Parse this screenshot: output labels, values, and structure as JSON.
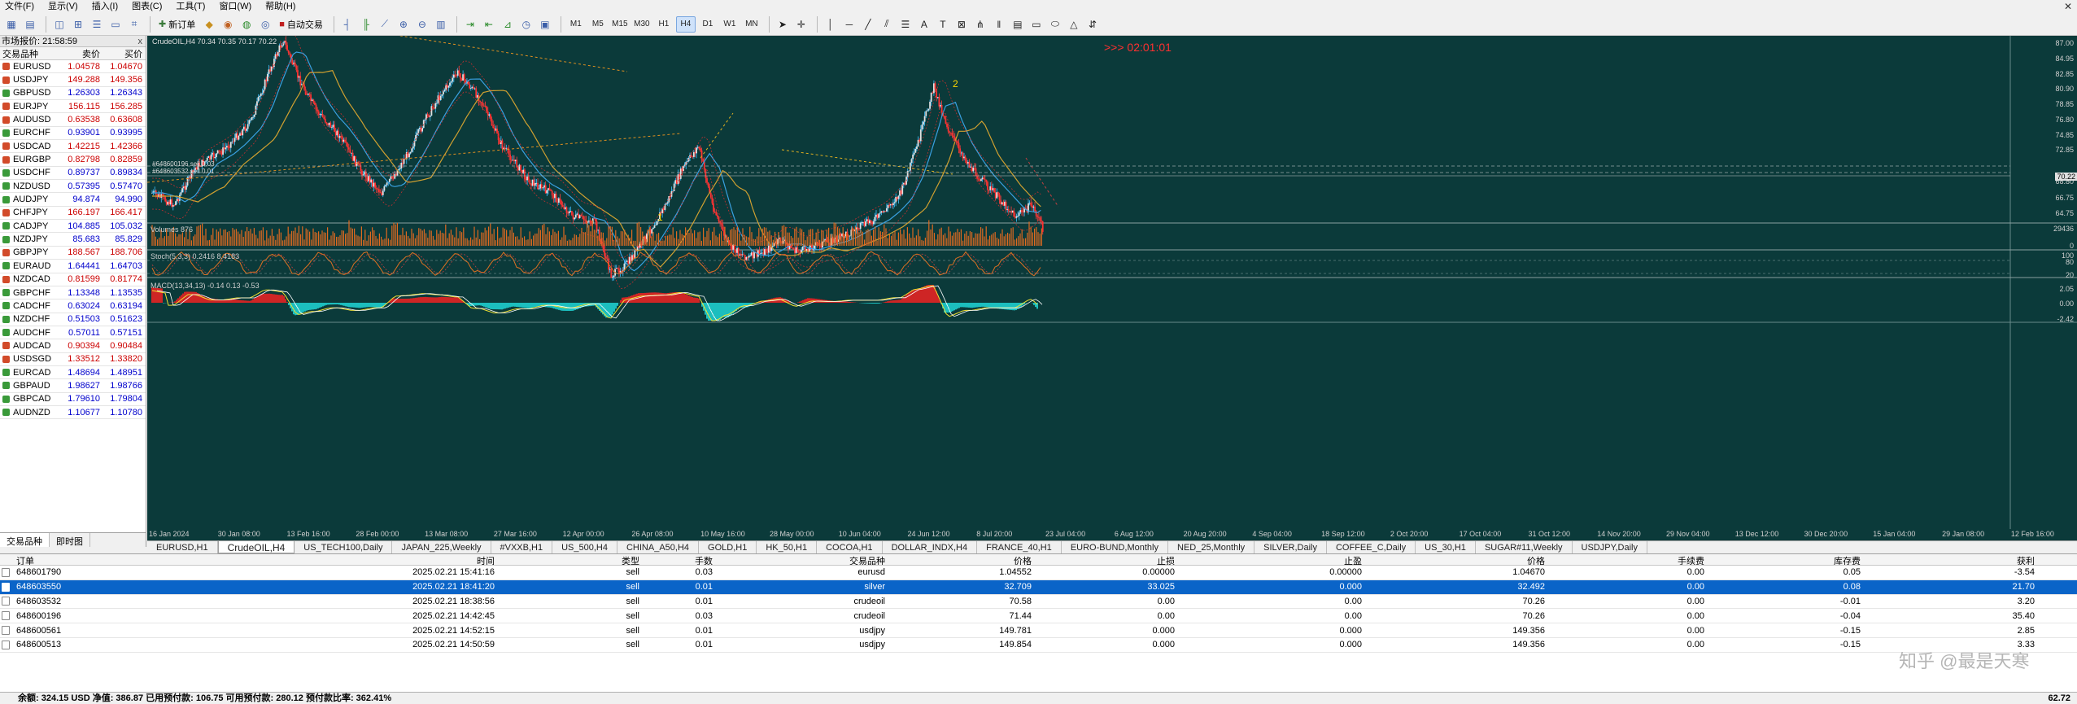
{
  "menu": [
    "文件(F)",
    "显示(V)",
    "插入(I)",
    "图表(C)",
    "工具(T)",
    "窗口(W)",
    "帮助(H)"
  ],
  "toolbar": {
    "new_order": "新订单",
    "auto_trading": "自动交易",
    "timeframes": [
      "M1",
      "M5",
      "M15",
      "M30",
      "H1",
      "H4",
      "D1",
      "W1",
      "MN"
    ],
    "active_timeframe": "H4"
  },
  "market_watch": {
    "title": "市场报价: 21:58:59",
    "close": "x",
    "headers": {
      "symbol": "交易品种",
      "bid": "卖价",
      "ask": "买价"
    },
    "rows": [
      {
        "symbol": "EURUSD",
        "bid": "1.04578",
        "ask": "1.04670",
        "dir": "down"
      },
      {
        "symbol": "USDJPY",
        "bid": "149.288",
        "ask": "149.356",
        "dir": "down"
      },
      {
        "symbol": "GBPUSD",
        "bid": "1.26303",
        "ask": "1.26343",
        "dir": "up"
      },
      {
        "symbol": "EURJPY",
        "bid": "156.115",
        "ask": "156.285",
        "dir": "down"
      },
      {
        "symbol": "AUDUSD",
        "bid": "0.63538",
        "ask": "0.63608",
        "dir": "down"
      },
      {
        "symbol": "EURCHF",
        "bid": "0.93901",
        "ask": "0.93995",
        "dir": "up"
      },
      {
        "symbol": "USDCAD",
        "bid": "1.42215",
        "ask": "1.42366",
        "dir": "down"
      },
      {
        "symbol": "EURGBP",
        "bid": "0.82798",
        "ask": "0.82859",
        "dir": "down"
      },
      {
        "symbol": "USDCHF",
        "bid": "0.89737",
        "ask": "0.89834",
        "dir": "up"
      },
      {
        "symbol": "NZDUSD",
        "bid": "0.57395",
        "ask": "0.57470",
        "dir": "up"
      },
      {
        "symbol": "AUDJPY",
        "bid": "94.874",
        "ask": "94.990",
        "dir": "up"
      },
      {
        "symbol": "CHFJPY",
        "bid": "166.197",
        "ask": "166.417",
        "dir": "down"
      },
      {
        "symbol": "CADJPY",
        "bid": "104.885",
        "ask": "105.032",
        "dir": "up"
      },
      {
        "symbol": "NZDJPY",
        "bid": "85.683",
        "ask": "85.829",
        "dir": "up"
      },
      {
        "symbol": "GBPJPY",
        "bid": "188.567",
        "ask": "188.706",
        "dir": "down"
      },
      {
        "symbol": "EURAUD",
        "bid": "1.64441",
        "ask": "1.64703",
        "dir": "up"
      },
      {
        "symbol": "NZDCAD",
        "bid": "0.81599",
        "ask": "0.81774",
        "dir": "down"
      },
      {
        "symbol": "GBPCHF",
        "bid": "1.13348",
        "ask": "1.13535",
        "dir": "up"
      },
      {
        "symbol": "CADCHF",
        "bid": "0.63024",
        "ask": "0.63194",
        "dir": "up"
      },
      {
        "symbol": "NZDCHF",
        "bid": "0.51503",
        "ask": "0.51623",
        "dir": "up"
      },
      {
        "symbol": "AUDCHF",
        "bid": "0.57011",
        "ask": "0.57151",
        "dir": "up"
      },
      {
        "symbol": "AUDCAD",
        "bid": "0.90394",
        "ask": "0.90484",
        "dir": "down"
      },
      {
        "symbol": "USDSGD",
        "bid": "1.33512",
        "ask": "1.33820",
        "dir": "down"
      },
      {
        "symbol": "EURCAD",
        "bid": "1.48694",
        "ask": "1.48951",
        "dir": "up"
      },
      {
        "symbol": "GBPAUD",
        "bid": "1.98627",
        "ask": "1.98766",
        "dir": "up"
      },
      {
        "symbol": "GBPCAD",
        "bid": "1.79610",
        "ask": "1.79804",
        "dir": "up"
      },
      {
        "symbol": "AUDNZD",
        "bid": "1.10677",
        "ask": "1.10780",
        "dir": "up"
      }
    ],
    "tabs": [
      "交易品种",
      "即时图"
    ]
  },
  "chart": {
    "title": "CrudeOIL,H4  70.34 70.35 70.17 70.22",
    "countdown": ">>> 02:01:01",
    "price_axis": [
      "87.00",
      "84.95",
      "82.85",
      "80.90",
      "78.85",
      "76.80",
      "74.85",
      "72.85",
      "70.22",
      "68.80",
      "66.75",
      "64.75"
    ],
    "current_price": "70.22",
    "order_labels": [
      "#648600196 sell 0.03",
      "#648603532 sell 0.01"
    ],
    "wave_labels": [
      "1",
      "2"
    ],
    "time_axis": [
      "16 Jan 2024",
      "30 Jan 08:00",
      "13 Feb 16:00",
      "28 Feb 00:00",
      "13 Mar 08:00",
      "27 Mar 16:00",
      "12 Apr 00:00",
      "26 Apr 08:00",
      "10 May 16:00",
      "28 May 00:00",
      "10 Jun 04:00",
      "24 Jun 12:00",
      "8 Jul 20:00",
      "23 Jul 04:00",
      "6 Aug 12:00",
      "20 Aug 20:00",
      "4 Sep 04:00",
      "18 Sep 12:00",
      "2 Oct 20:00",
      "17 Oct 04:00",
      "31 Oct 12:00",
      "14 Nov 20:00",
      "29 Nov 04:00",
      "13 Dec 12:00",
      "30 Dec 20:00",
      "15 Jan 04:00",
      "29 Jan 08:00",
      "12 Feb 16:00"
    ],
    "volumes": {
      "label": "Volumes 876",
      "max": "29436",
      "zero": "0"
    },
    "stoch": {
      "label": "Stoch(5,3,3) 0.2416 8.4183",
      "levels": [
        "100",
        "80",
        "20"
      ]
    },
    "macd": {
      "label": "MACD(13,34,13) -0.14 0.13 -0.53",
      "levels": [
        "2.05",
        "0.00",
        "-2.42"
      ]
    }
  },
  "chart_tabs": [
    "EURUSD,H1",
    "CrudeOIL,H4",
    "US_TECH100,Daily",
    "JAPAN_225,Weekly",
    "#VXXB,H1",
    "US_500,H4",
    "CHINA_A50,H4",
    "GOLD,H1",
    "HK_50,H1",
    "COCOA,H1",
    "DOLLAR_INDX,H4",
    "FRANCE_40,H1",
    "EURO-BUND,Monthly",
    "NED_25,Monthly",
    "SILVER,Daily",
    "COFFEE_C,Daily",
    "US_30,H1",
    "SUGAR#11,Weekly",
    "USDJPY,Daily"
  ],
  "active_chart_tab": "CrudeOIL,H4",
  "terminal": {
    "headers": [
      "订单",
      "时间",
      "类型",
      "手数",
      "交易品种",
      "价格",
      "止损",
      "止盈",
      "价格",
      "手续费",
      "库存费",
      "获利"
    ],
    "rows": [
      {
        "order": "648601790",
        "time": "2025.02.21 15:41:16",
        "type": "sell",
        "lots": "0.03",
        "symbol": "eurusd",
        "price": "1.04552",
        "sl": "0.00000",
        "tp": "0.00000",
        "cur": "1.04670",
        "comm": "0.00",
        "swap": "0.05",
        "profit": "-3.54",
        "selected": false
      },
      {
        "order": "648603550",
        "time": "2025.02.21 18:41:20",
        "type": "sell",
        "lots": "0.01",
        "symbol": "silver",
        "price": "32.709",
        "sl": "33.025",
        "tp": "0.000",
        "cur": "32.492",
        "comm": "0.00",
        "swap": "0.08",
        "profit": "21.70",
        "selected": true
      },
      {
        "order": "648603532",
        "time": "2025.02.21 18:38:56",
        "type": "sell",
        "lots": "0.01",
        "symbol": "crudeoil",
        "price": "70.58",
        "sl": "0.00",
        "tp": "0.00",
        "cur": "70.26",
        "comm": "0.00",
        "swap": "-0.01",
        "profit": "3.20",
        "selected": false
      },
      {
        "order": "648600196",
        "time": "2025.02.21 14:42:45",
        "type": "sell",
        "lots": "0.03",
        "symbol": "crudeoil",
        "price": "71.44",
        "sl": "0.00",
        "tp": "0.00",
        "cur": "70.26",
        "comm": "0.00",
        "swap": "-0.04",
        "profit": "35.40",
        "selected": false
      },
      {
        "order": "648600561",
        "time": "2025.02.21 14:52:15",
        "type": "sell",
        "lots": "0.01",
        "symbol": "usdjpy",
        "price": "149.781",
        "sl": "0.000",
        "tp": "0.000",
        "cur": "149.356",
        "comm": "0.00",
        "swap": "-0.15",
        "profit": "2.85",
        "selected": false
      },
      {
        "order": "648600513",
        "time": "2025.02.21 14:50:59",
        "type": "sell",
        "lots": "0.01",
        "symbol": "usdjpy",
        "price": "149.854",
        "sl": "0.000",
        "tp": "0.000",
        "cur": "149.356",
        "comm": "0.00",
        "swap": "-0.15",
        "profit": "3.33",
        "selected": false
      }
    ],
    "balance_line": "余额: 324.15 USD  净值: 386.87  已用预付款: 106.75  可用预付款: 280.12  预付款比率: 362.41%",
    "total_profit": "62.72"
  },
  "watermark": "知乎 @最是天寒"
}
